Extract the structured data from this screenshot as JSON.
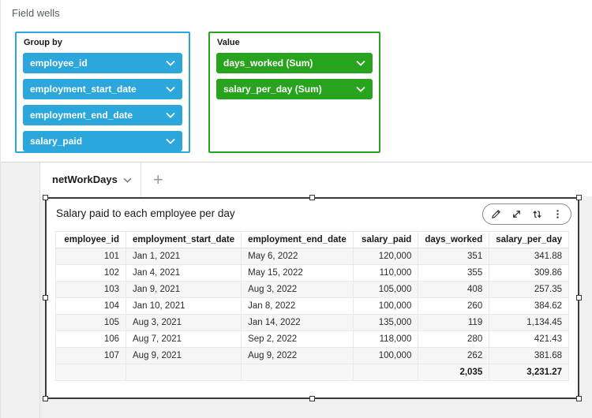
{
  "field_wells": {
    "title": "Field wells",
    "group_by": {
      "label": "Group by",
      "pills": [
        "employee_id",
        "employment_start_date",
        "employment_end_date",
        "salary_paid"
      ]
    },
    "value": {
      "label": "Value",
      "pills": [
        "days_worked (Sum)",
        "salary_per_day (Sum)"
      ]
    }
  },
  "sheet": {
    "tab_label": "netWorkDays",
    "add_label": "+"
  },
  "visual": {
    "title": "Salary paid to each employee per day",
    "toolbar": {
      "edit": "edit",
      "maximize": "maximize",
      "move": "move",
      "menu": "menu"
    }
  },
  "table": {
    "columns": [
      "employee_id",
      "employment_start_date",
      "employment_end_date",
      "salary_paid",
      "days_worked",
      "salary_per_day"
    ],
    "alignments": [
      "right",
      "left",
      "left",
      "right",
      "right",
      "right"
    ],
    "col_widths": [
      "16%",
      "21%",
      "19.5%",
      "15%",
      "13%",
      "15.5%"
    ],
    "rows": [
      [
        "101",
        "Jan 1, 2021",
        "May 6, 2022",
        "120,000",
        "351",
        "341.88"
      ],
      [
        "102",
        "Jan 4, 2021",
        "May 15, 2022",
        "110,000",
        "355",
        "309.86"
      ],
      [
        "103",
        "Jan 9, 2021",
        "Aug 3, 2022",
        "105,000",
        "408",
        "257.35"
      ],
      [
        "104",
        "Jan 10, 2021",
        "Jan 8, 2022",
        "100,000",
        "260",
        "384.62"
      ],
      [
        "105",
        "Aug 3, 2021",
        "Jan 14, 2022",
        "135,000",
        "119",
        "1,134.45"
      ],
      [
        "106",
        "Aug 7, 2021",
        "Sep 2, 2022",
        "118,000",
        "280",
        "421.43"
      ],
      [
        "107",
        "Aug 9, 2021",
        "Aug 9, 2022",
        "100,000",
        "262",
        "381.68"
      ]
    ],
    "total_row": [
      "",
      "",
      "",
      "",
      "2,035",
      "3,231.27"
    ]
  },
  "chart_data": {
    "type": "table",
    "title": "Salary paid to each employee per day",
    "columns": [
      "employee_id",
      "employment_start_date",
      "employment_end_date",
      "salary_paid",
      "days_worked",
      "salary_per_day"
    ],
    "rows": [
      [
        101,
        "Jan 1, 2021",
        "May 6, 2022",
        120000,
        351,
        341.88
      ],
      [
        102,
        "Jan 4, 2021",
        "May 15, 2022",
        110000,
        355,
        309.86
      ],
      [
        103,
        "Jan 9, 2021",
        "Aug 3, 2022",
        105000,
        408,
        257.35
      ],
      [
        104,
        "Jan 10, 2021",
        "Jan 8, 2022",
        100000,
        260,
        384.62
      ],
      [
        105,
        "Aug 3, 2021",
        "Jan 14, 2022",
        135000,
        119,
        1134.45
      ],
      [
        106,
        "Aug 7, 2021",
        "Sep 2, 2022",
        118000,
        280,
        421.43
      ],
      [
        107,
        "Aug 9, 2021",
        "Aug 9, 2022",
        100000,
        262,
        381.68
      ]
    ],
    "totals": {
      "days_worked": 2035,
      "salary_per_day": 3231.27
    }
  },
  "colors": {
    "dimension_blue": "#2CA7DB",
    "measure_green": "#27A31D",
    "selection_border": "#3A3A3A"
  }
}
